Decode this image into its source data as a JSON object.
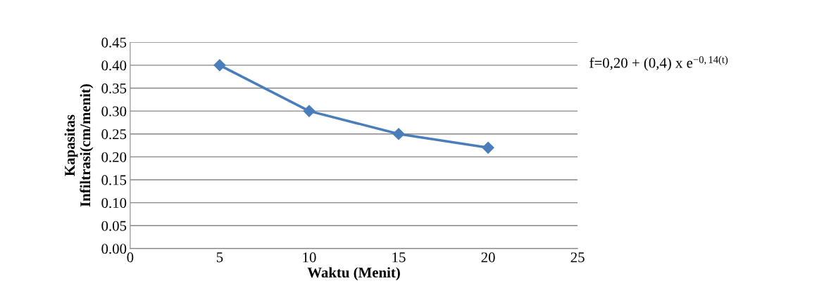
{
  "chart_data": {
    "type": "line",
    "xlabel": "Waktu (Menit)",
    "ylabel": "Kapasitas\nInfiltrasi(cm/menit)",
    "x": [
      5,
      10,
      15,
      20
    ],
    "series": [
      {
        "color": "#4a7ebb",
        "values": [
          0.4,
          0.3,
          0.25,
          0.22
        ]
      }
    ],
    "xlim": [
      0,
      25
    ],
    "xticks": [
      0,
      5,
      10,
      15,
      20,
      25
    ],
    "ylim": [
      0,
      0.45
    ],
    "yticks": [
      {
        "value": 0,
        "label": "0.00"
      },
      {
        "value": 0.05,
        "label": "0.05"
      },
      {
        "value": 0.1,
        "label": "0.10"
      },
      {
        "value": 0.15,
        "label": "0.15"
      },
      {
        "value": 0.2,
        "label": "0.20"
      },
      {
        "value": 0.25,
        "label": "0.25"
      },
      {
        "value": 0.3,
        "label": "0.30"
      },
      {
        "value": 0.35,
        "label": "0.35"
      },
      {
        "value": 0.4,
        "label": "0.40"
      },
      {
        "value": 0.45,
        "label": "0.45"
      }
    ],
    "grid": "y",
    "marker": "diamond",
    "line_style": "solid",
    "annotations": [
      "f=0,20 + (0,4) x e$^{−0,14(t)}$"
    ]
  }
}
